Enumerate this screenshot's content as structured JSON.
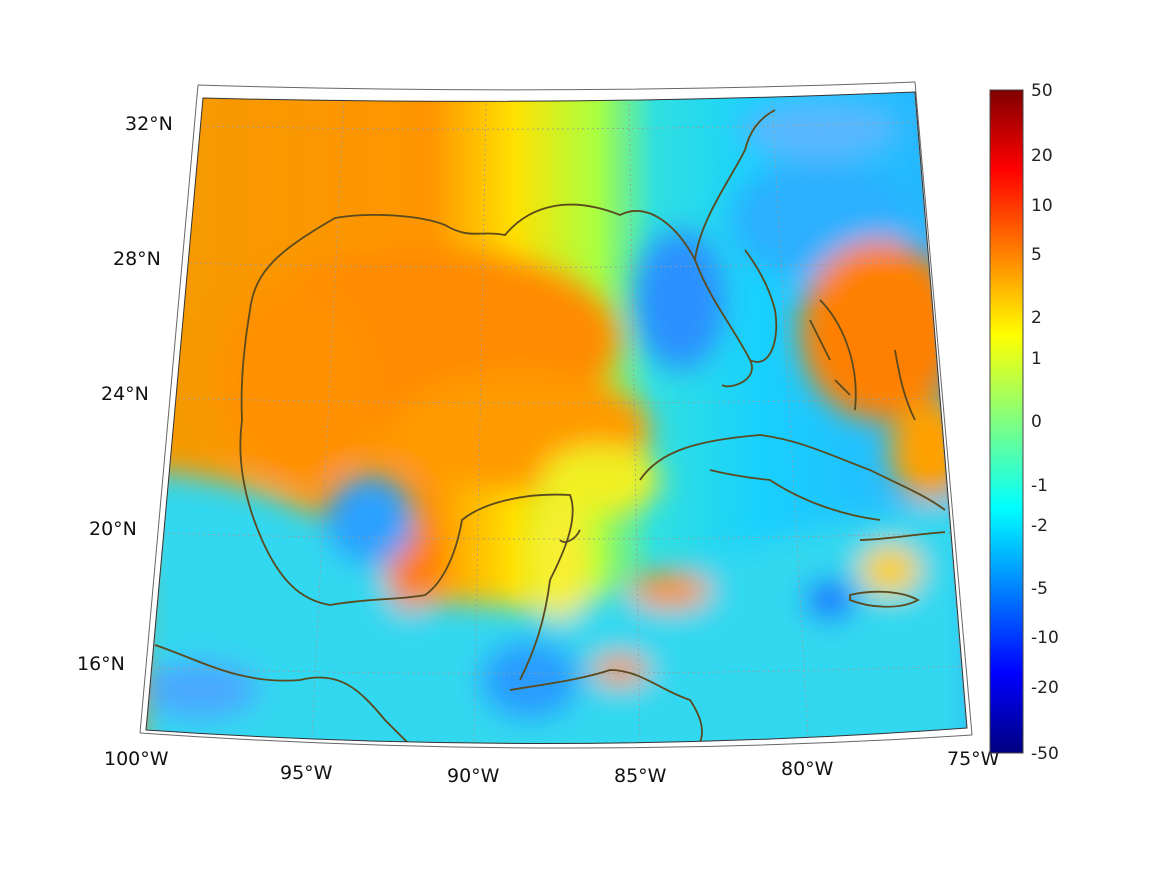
{
  "map": {
    "region": "Gulf of Mexico / Caribbean",
    "projection": "conic",
    "lat_labels": [
      "32°N",
      "28°N",
      "24°N",
      "20°N",
      "16°N"
    ],
    "lon_labels": [
      "100°W",
      "95°W",
      "90°W",
      "85°W",
      "80°W",
      "75°W"
    ],
    "grid": true,
    "coastline_color": "#5a4a1e"
  },
  "colorbar": {
    "colormap": "jet",
    "scale": "symlog",
    "ticks": [
      "50",
      "20",
      "10",
      "5",
      "2",
      "1",
      "0",
      "-1",
      "-2",
      "-5",
      "-10",
      "-20",
      "-50"
    ],
    "colors": [
      "#800000",
      "#ff0000",
      "#ffff00",
      "#00ffff",
      "#0000ff",
      "#000080"
    ]
  }
}
